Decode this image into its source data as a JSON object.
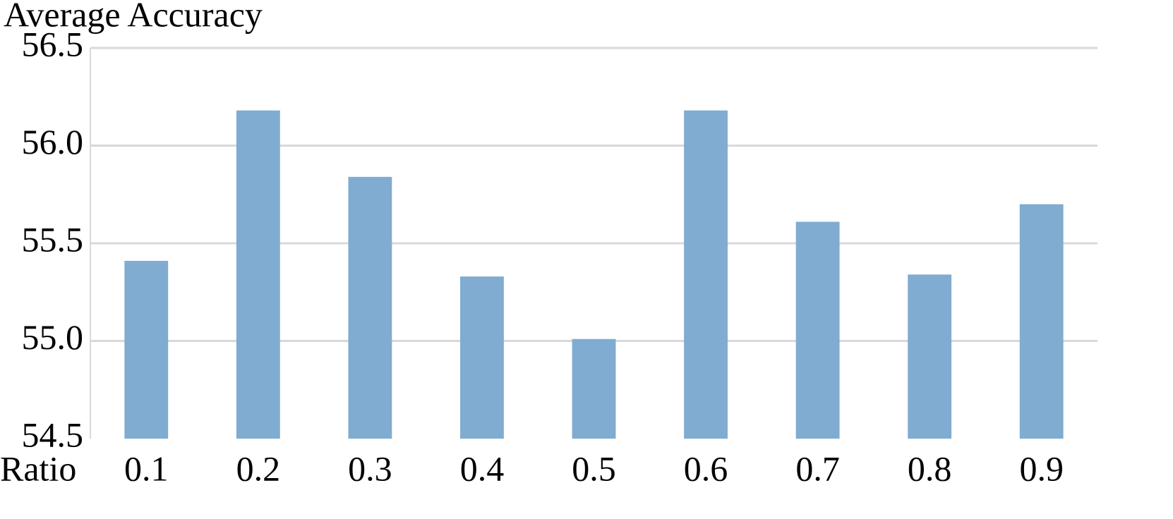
{
  "chart_data": {
    "type": "bar",
    "y_label": "Average Accuracy",
    "x_label": "Ratio",
    "categories": [
      "0.1",
      "0.2",
      "0.3",
      "0.4",
      "0.5",
      "0.6",
      "0.7",
      "0.8",
      "0.9"
    ],
    "values": [
      55.41,
      56.18,
      55.84,
      55.33,
      55.01,
      56.18,
      55.61,
      55.34,
      55.7
    ],
    "color": "#7facd0",
    "ylim": [
      54.5,
      56.5
    ],
    "yticks": [
      54.5,
      {
        "value": 55,
        "label": "55.0"
      },
      55.5,
      {
        "value": 56,
        "label": "56.0"
      },
      56.5
    ],
    "grid": true
  }
}
